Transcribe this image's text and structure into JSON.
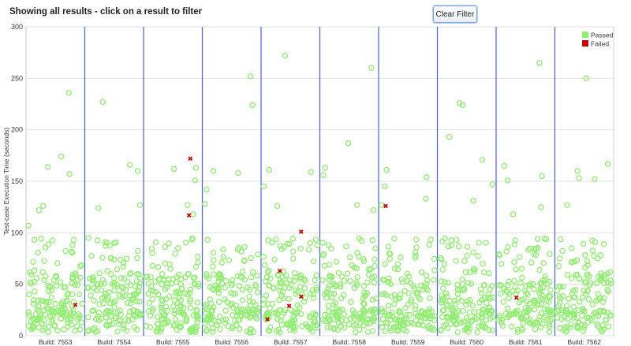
{
  "header": {
    "title": "Showing all results - click on a result to filter",
    "clear_filter_label": "Clear Filter"
  },
  "chart_data": {
    "type": "scatter",
    "ylabel": "Test-case Execution Time (seconds)",
    "xlabel": "",
    "ylim": [
      0,
      300
    ],
    "yticks": [
      0,
      50,
      100,
      150,
      200,
      250,
      300
    ],
    "grid": true,
    "legend_position": "top-right",
    "categories": [
      "Build: 7553",
      "Build: 7554",
      "Build: 7555",
      "Build: 7556",
      "Build: 7557",
      "Build: 7558",
      "Build: 7559",
      "Build: 7560",
      "Build: 7561",
      "Build: 7562"
    ],
    "series": [
      {
        "name": "Passed",
        "color": "#90ee70",
        "marker": "circle",
        "points_per_build": 150,
        "typical_range": [
          3,
          95
        ],
        "outliers": [
          {
            "build": "Build: 7553",
            "values": [
              236,
              174,
              157,
              126,
              122,
              107,
              164
            ]
          },
          {
            "build": "Build: 7554",
            "values": [
              227,
              166,
              160,
              127,
              124
            ]
          },
          {
            "build": "Build: 7555",
            "values": [
              162,
              163,
              151,
              127,
              118
            ]
          },
          {
            "build": "Build: 7556",
            "values": [
              224,
              252,
              160,
              142,
              128,
              158
            ]
          },
          {
            "build": "Build: 7557",
            "values": [
              272,
              161,
              145,
              126,
              159
            ]
          },
          {
            "build": "Build: 7558",
            "values": [
              163,
              260,
              187,
              156,
              127,
              122
            ]
          },
          {
            "build": "Build: 7559",
            "values": [
              154,
              145,
              133,
              127,
              161
            ]
          },
          {
            "build": "Build: 7560",
            "values": [
              224,
              226,
              193,
              171,
              131,
              147
            ]
          },
          {
            "build": "Build: 7561",
            "values": [
              151,
              265,
              165,
              155,
              125,
              118
            ]
          },
          {
            "build": "Build: 7562",
            "values": [
              153,
              250,
              167,
              152,
              127,
              160
            ]
          }
        ]
      },
      {
        "name": "Failed",
        "color": "#cc0000",
        "marker": "cross",
        "points": [
          {
            "build": "Build: 7553",
            "value": 30
          },
          {
            "build": "Build: 7555",
            "value": 172
          },
          {
            "build": "Build: 7555",
            "value": 117
          },
          {
            "build": "Build: 7557",
            "value": 63
          },
          {
            "build": "Build: 7557",
            "value": 38
          },
          {
            "build": "Build: 7557",
            "value": 16
          },
          {
            "build": "Build: 7557",
            "value": 101
          },
          {
            "build": "Build: 7557",
            "value": 29
          },
          {
            "build": "Build: 7559",
            "value": 126
          },
          {
            "build": "Build: 7561",
            "value": 37
          }
        ]
      }
    ]
  }
}
